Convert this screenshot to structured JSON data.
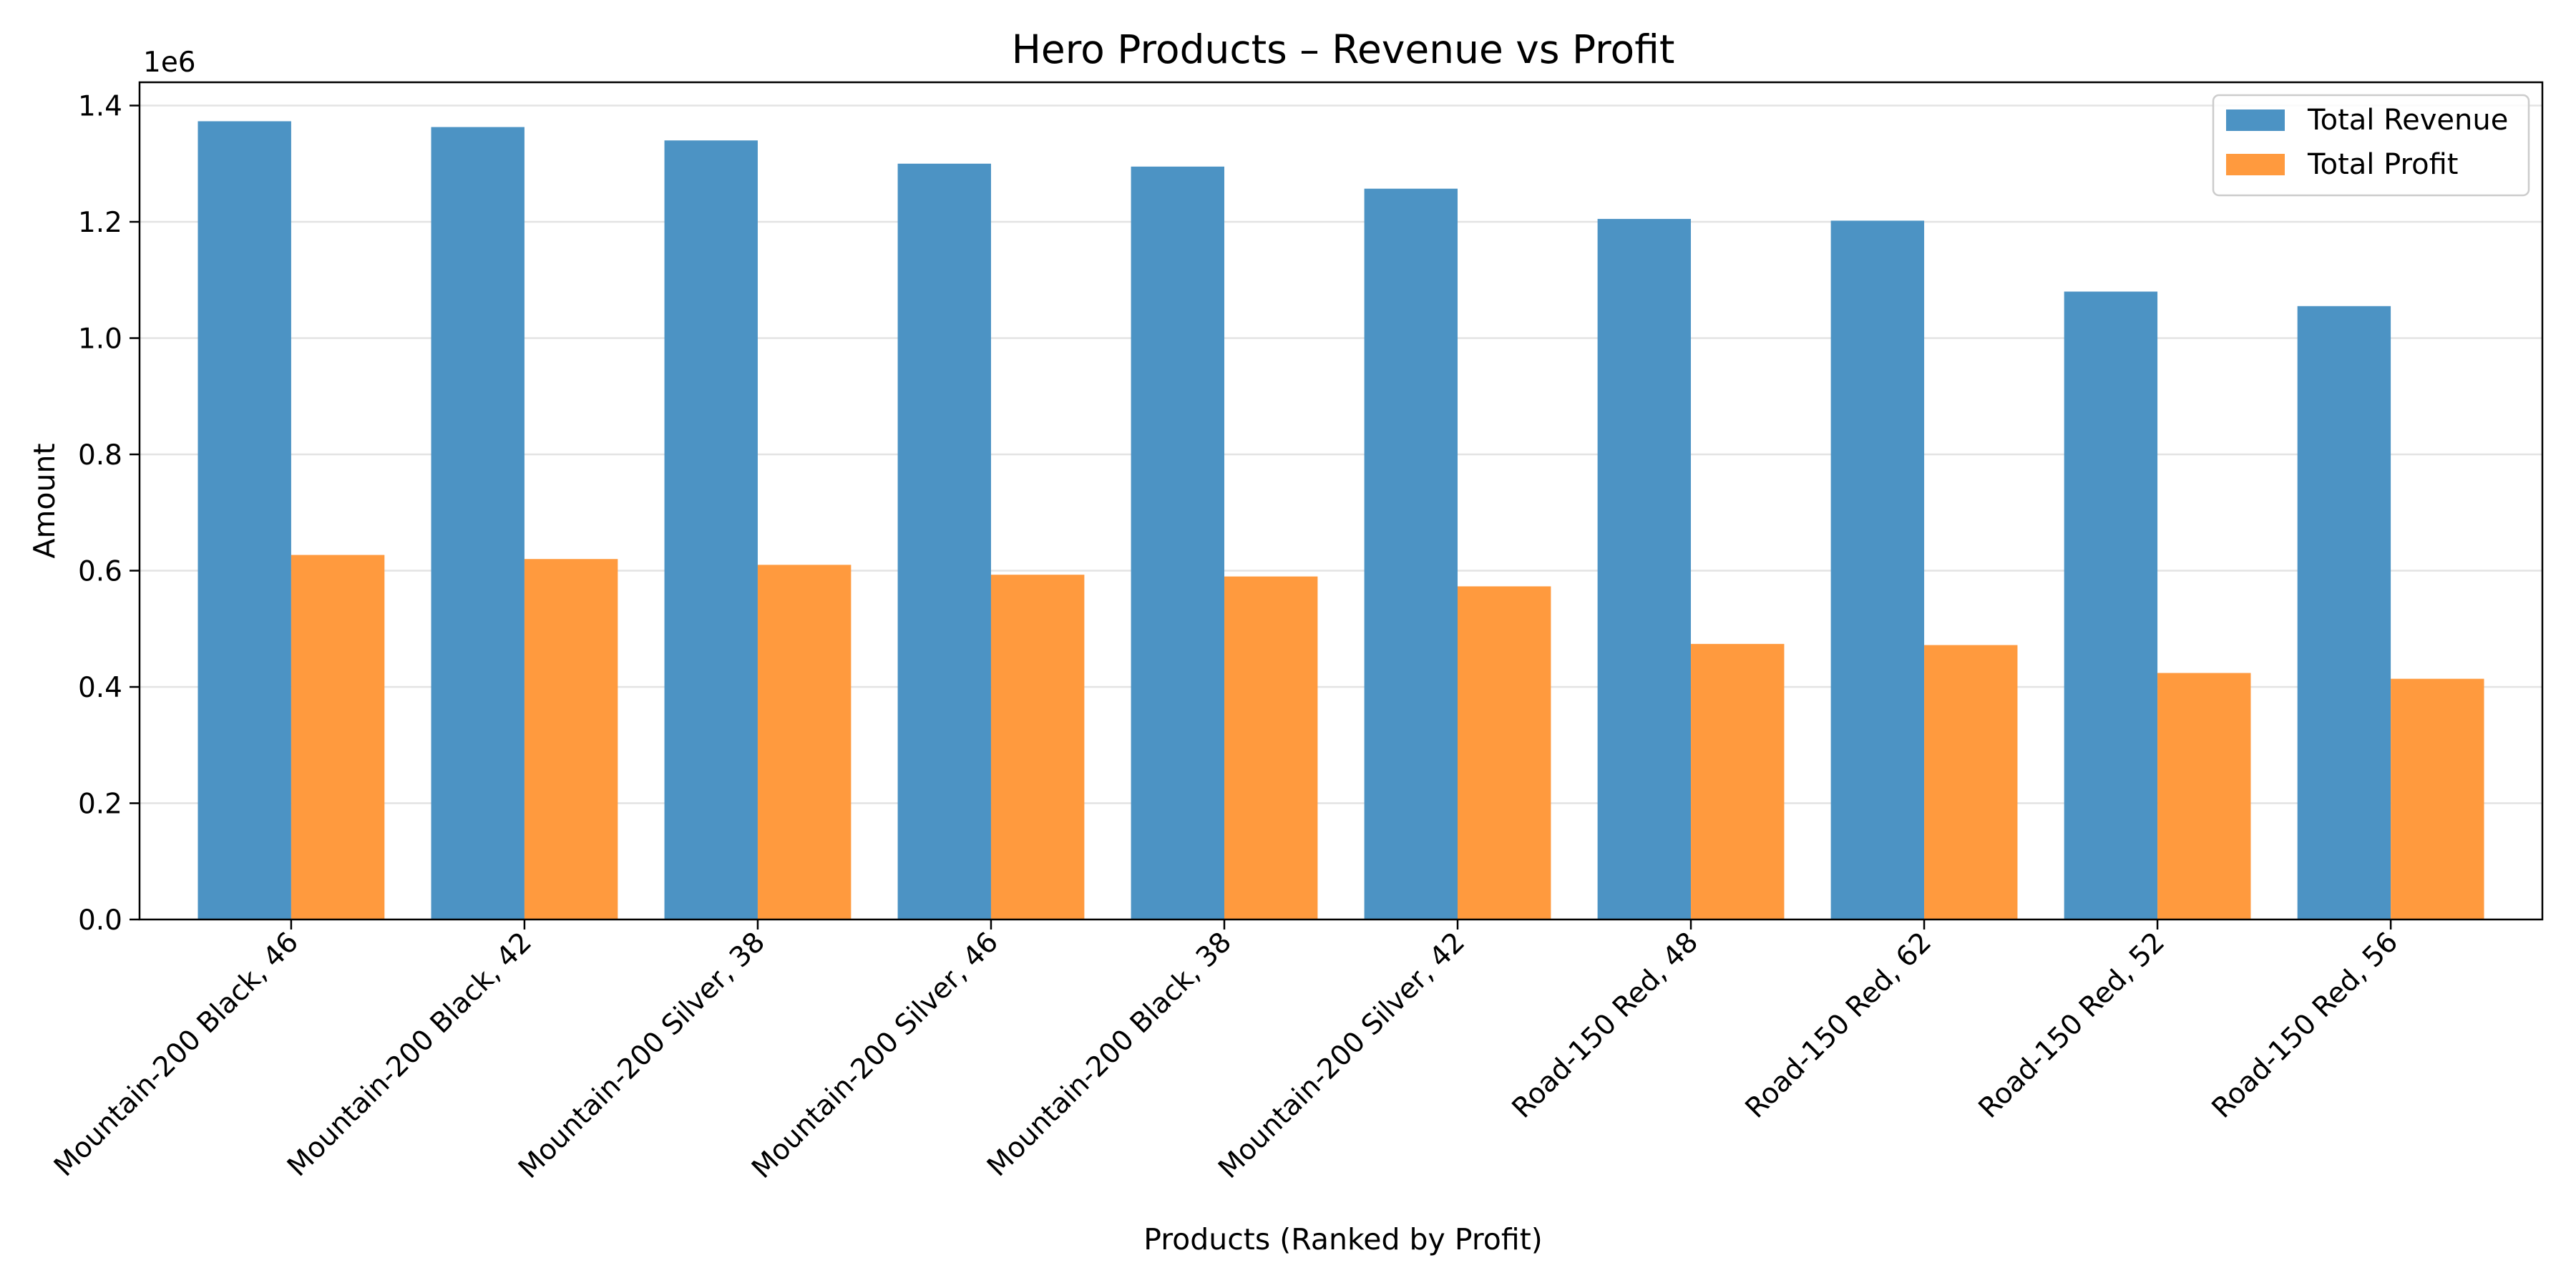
{
  "chart_data": {
    "type": "bar",
    "title": "Hero Products – Revenue vs Profit",
    "xlabel": "Products (Ranked by Profit)",
    "ylabel": "Amount",
    "y_offset_label": "1e6",
    "categories": [
      "Mountain-200 Black, 46",
      "Mountain-200 Black, 42",
      "Mountain-200 Silver, 38",
      "Mountain-200 Silver, 46",
      "Mountain-200 Black, 38",
      "Mountain-200 Silver, 42",
      "Road-150 Red, 48",
      "Road-150 Red, 62",
      "Road-150 Red, 52",
      "Road-150 Red, 56"
    ],
    "series": [
      {
        "name": "Total Revenue",
        "color": "#4c93c4",
        "values": [
          1373000,
          1363000,
          1340000,
          1300000,
          1295000,
          1257000,
          1205000,
          1202000,
          1080000,
          1055000
        ]
      },
      {
        "name": "Total Profit",
        "color": "#ff9a3e",
        "values": [
          627000,
          620000,
          610000,
          593000,
          590000,
          573000,
          474000,
          472000,
          424000,
          414000
        ]
      }
    ],
    "ylim": [
      0,
      1440000
    ],
    "yticks": [
      0,
      200000,
      400000,
      600000,
      800000,
      1000000,
      1200000,
      1400000
    ],
    "ytick_labels": [
      "0.0",
      "0.2",
      "0.4",
      "0.6",
      "0.8",
      "1.0",
      "1.2",
      "1.4"
    ],
    "grid": "horizontal",
    "legend_position": "top-right"
  }
}
